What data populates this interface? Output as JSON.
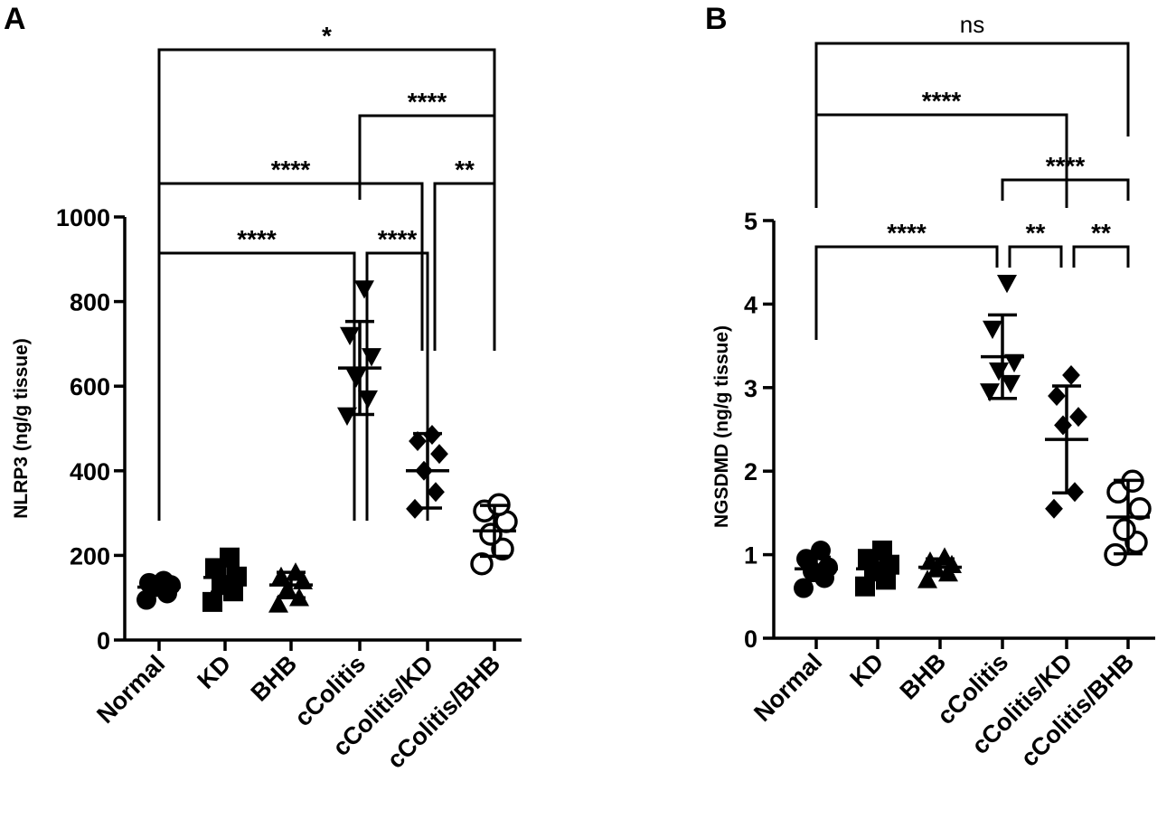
{
  "chart_data": [
    {
      "panel": "A",
      "type": "scatter",
      "subtype": "dot plot with mean and SD error bars",
      "ylabel": "NLRP3 (ng/g tissue)",
      "ylim": [
        0,
        1000
      ],
      "yticks": [
        0,
        200,
        400,
        600,
        800,
        1000
      ],
      "categories": [
        "Normal",
        "KD",
        "BHB",
        "cColitis",
        "cColitis/KD",
        "cColitis/BHB"
      ],
      "markers": [
        "circle",
        "square",
        "triangle-up",
        "triangle-down",
        "diamond",
        "circle-open"
      ],
      "points": [
        [
          95,
          110,
          125,
          130,
          135,
          140
        ],
        [
          90,
          115,
          130,
          150,
          170,
          195
        ],
        [
          85,
          100,
          120,
          140,
          150,
          160
        ],
        [
          530,
          570,
          620,
          670,
          720,
          830
        ],
        [
          310,
          350,
          400,
          440,
          470,
          485
        ],
        [
          180,
          215,
          250,
          280,
          305,
          320
        ]
      ],
      "mean": [
        125,
        148,
        130,
        643,
        400,
        258
      ],
      "sd": [
        15,
        35,
        30,
        110,
        88,
        60
      ],
      "comparisons": [
        {
          "from": 0,
          "to": 5,
          "label": "*"
        },
        {
          "from": 3,
          "to": 5,
          "label": "****"
        },
        {
          "from": 0,
          "to": 4,
          "label": "****"
        },
        {
          "from": 4,
          "to": 5,
          "label": "**"
        },
        {
          "from": 0,
          "to": 3,
          "label": "****"
        },
        {
          "from": 3,
          "to": 4,
          "label": "****"
        }
      ]
    },
    {
      "panel": "B",
      "type": "scatter",
      "subtype": "dot plot with mean and SD error bars",
      "ylabel": "NGSDMD (ng/g tissue)",
      "ylim": [
        0,
        5
      ],
      "yticks": [
        0,
        1,
        2,
        3,
        4,
        5
      ],
      "categories": [
        "Normal",
        "KD",
        "BHB",
        "cColitis",
        "cColitis/KD",
        "cColitis/BHB"
      ],
      "markers": [
        "circle",
        "square",
        "triangle-up",
        "triangle-down",
        "diamond",
        "circle-open"
      ],
      "points": [
        [
          0.6,
          0.72,
          0.8,
          0.85,
          0.95,
          1.05
        ],
        [
          0.62,
          0.7,
          0.8,
          0.88,
          0.95,
          1.05
        ],
        [
          0.7,
          0.78,
          0.83,
          0.88,
          0.92,
          0.97
        ],
        [
          2.95,
          3.05,
          3.2,
          3.3,
          3.7,
          4.25
        ],
        [
          1.55,
          1.75,
          2.55,
          2.65,
          2.9,
          3.15
        ],
        [
          1.0,
          1.15,
          1.3,
          1.55,
          1.75,
          1.88
        ]
      ],
      "mean": [
        0.83,
        0.83,
        0.85,
        3.37,
        2.38,
        1.45
      ],
      "sd": [
        0.14,
        0.13,
        0.1,
        0.5,
        0.64,
        0.44
      ],
      "comparisons": [
        {
          "from": 0,
          "to": 5,
          "label": "ns"
        },
        {
          "from": 0,
          "to": 4,
          "label": "****"
        },
        {
          "from": 3,
          "to": 5,
          "label": "****"
        },
        {
          "from": 0,
          "to": 3,
          "label": "****"
        },
        {
          "from": 3,
          "to": 4,
          "label": "**"
        },
        {
          "from": 4,
          "to": 5,
          "label": "**"
        }
      ]
    }
  ]
}
